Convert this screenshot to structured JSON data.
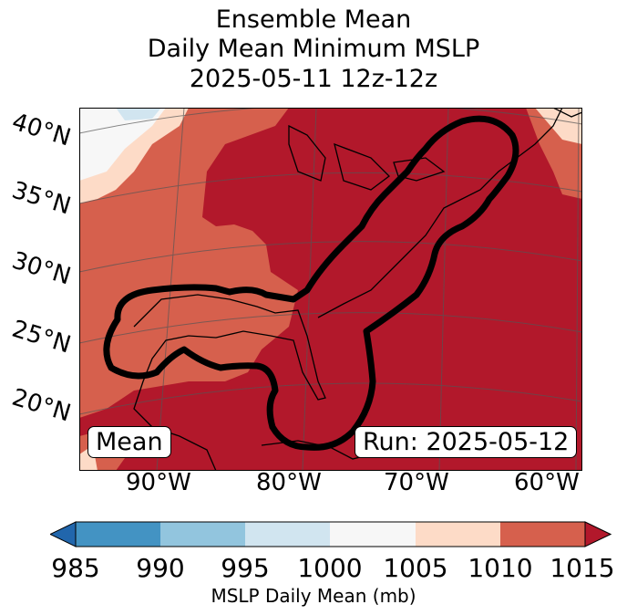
{
  "title": {
    "line1": "Ensemble Mean",
    "line2": "Daily Mean Minimum MSLP",
    "line3": "2025-05-11 12z-12z"
  },
  "map": {
    "lat_labels": [
      "40°N",
      "35°N",
      "30°N",
      "25°N",
      "20°N"
    ],
    "lon_labels": [
      "90°W",
      "80°W",
      "70°W",
      "60°W"
    ],
    "mean_label": "Mean",
    "run_label": "Run: 2025-05-12",
    "region": "US East Coast / Gulf of Mexico",
    "contour_color": "#000000"
  },
  "colorbar": {
    "ticks": [
      "985",
      "990",
      "995",
      "1000",
      "1005",
      "1010",
      "1015"
    ],
    "label": "MSLP Daily Mean (mb)",
    "colors": [
      "#2166ac",
      "#4393c3",
      "#92c5de",
      "#d1e5f0",
      "#f7f7f7",
      "#fddbc7",
      "#d6604d",
      "#b2182b"
    ]
  }
}
